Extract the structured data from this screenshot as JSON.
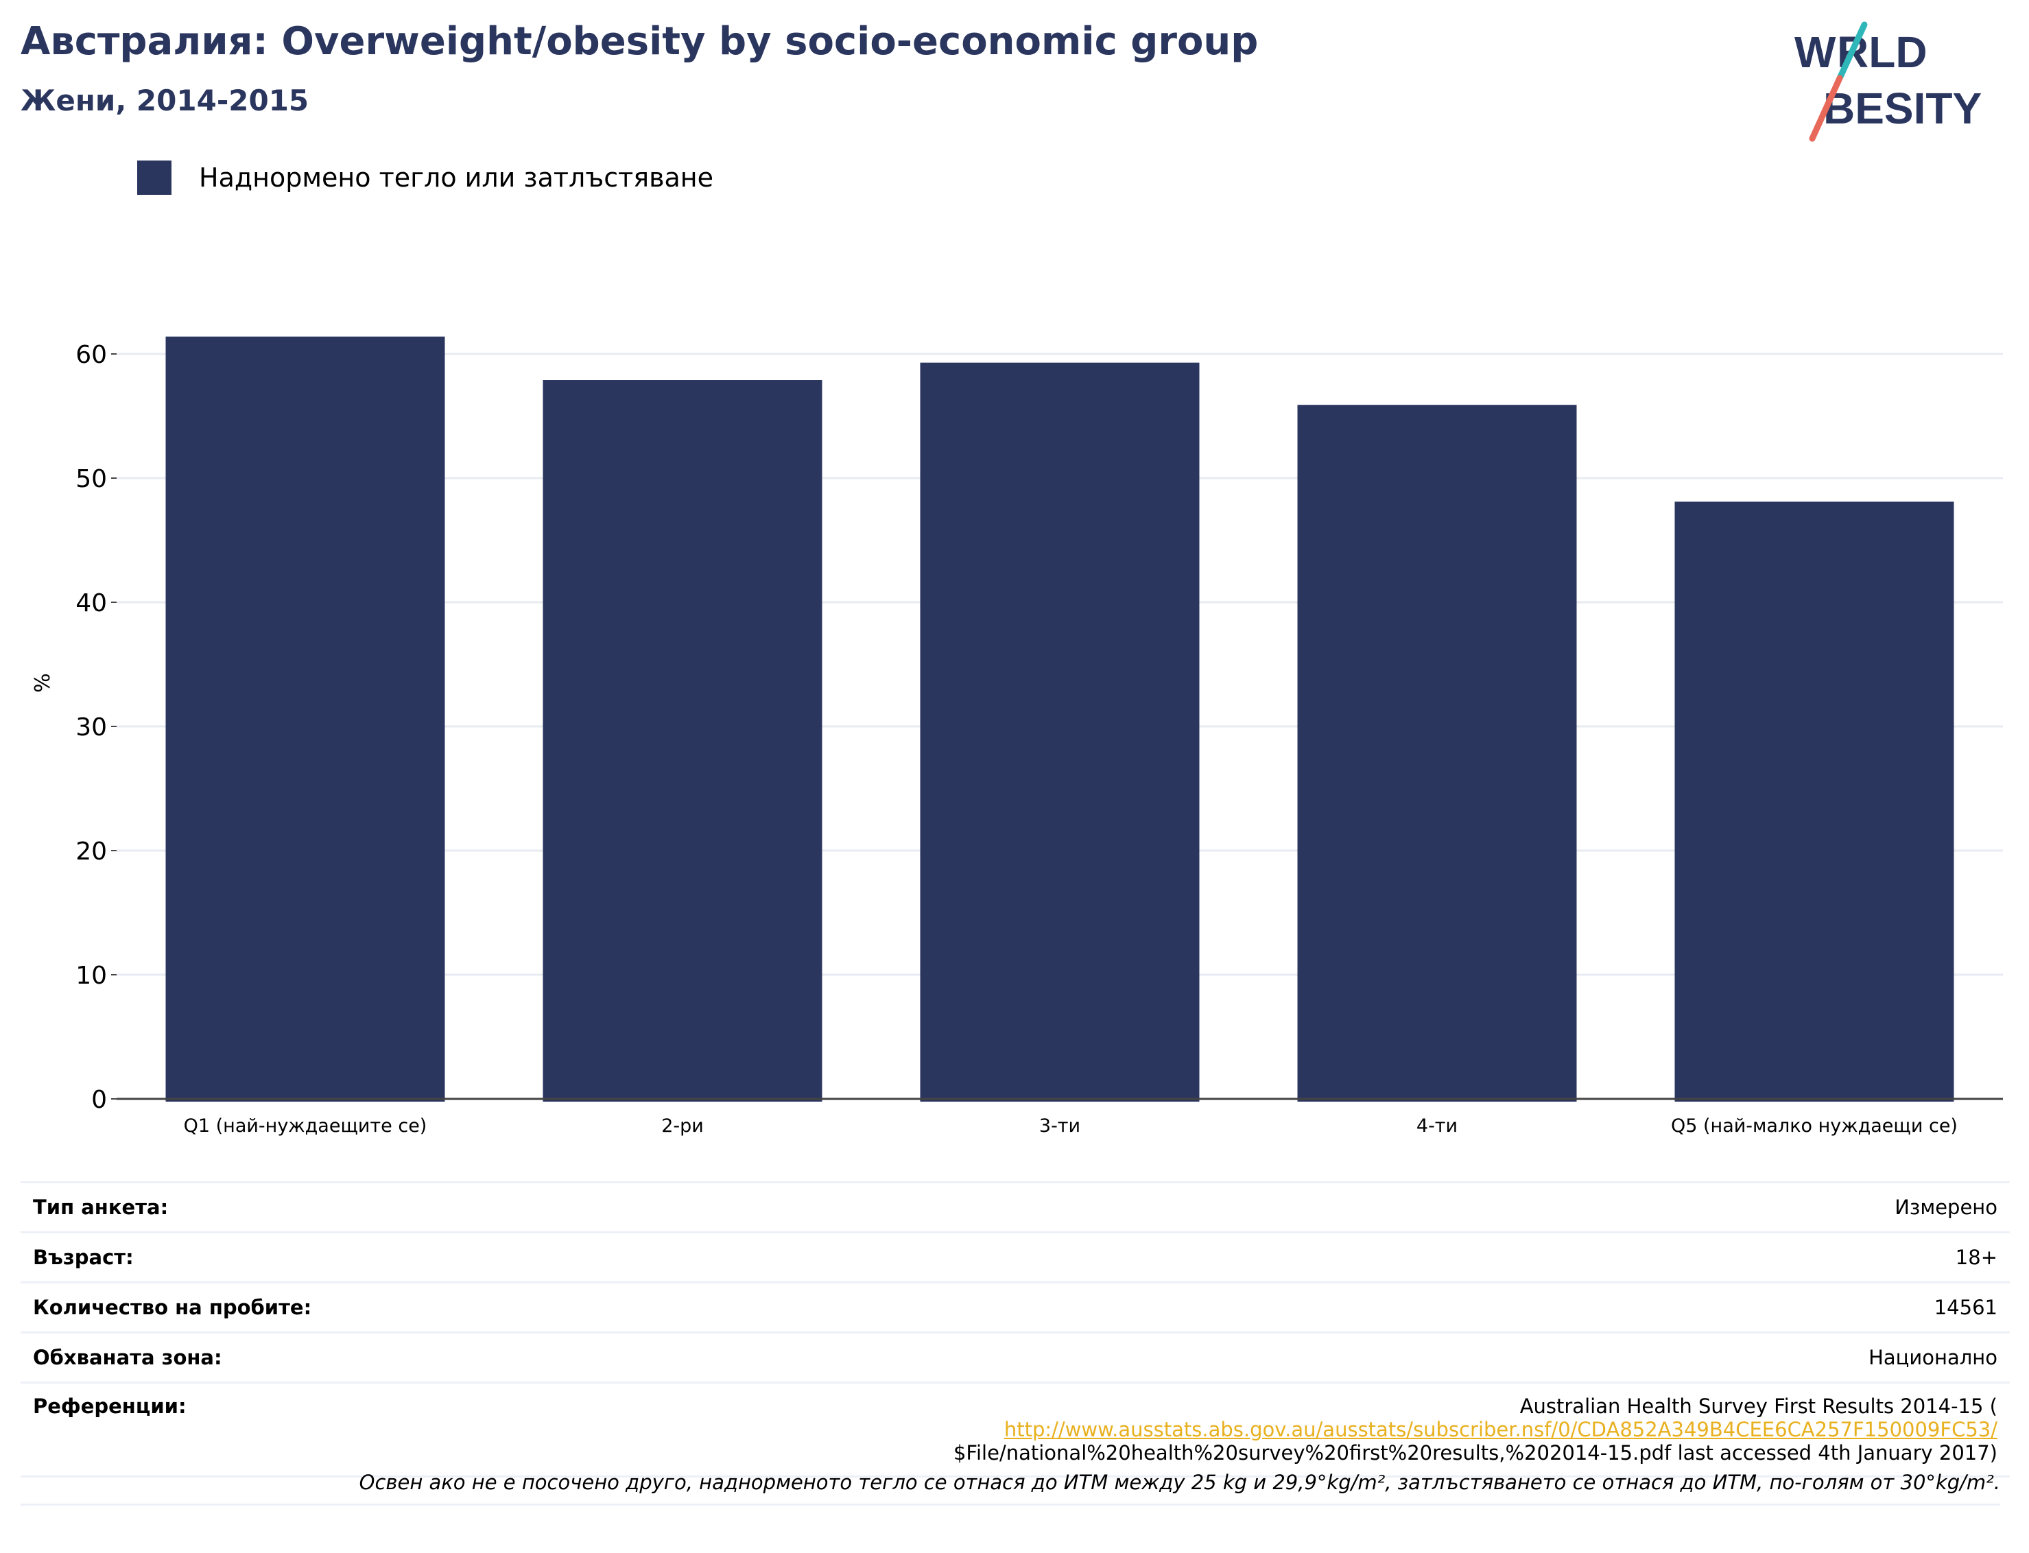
{
  "header": {
    "title": "Австралия: Overweight/obesity by socio-economic group",
    "subtitle": "Жени, 2014-2015"
  },
  "logo": {
    "line1": "WORLD",
    "line2": "OBESITY"
  },
  "colors": {
    "bar": "#2b365f",
    "title": "#2b365f",
    "grid": "#e8ebf2",
    "link": "#e8b01e",
    "logo_teal": "#2fb6b8",
    "logo_coral": "#e8685a"
  },
  "legend": {
    "label": "Наднормено тегло или затлъстяване"
  },
  "chart_data": {
    "type": "bar",
    "categories": [
      "Q1 (най-нуждаещите се)",
      "2-ри",
      "3-ти",
      "4-ти",
      "Q5 (най-малко нуждаещи се)"
    ],
    "series": [
      {
        "name": "Наднормено тегло или затлъстяване",
        "values": [
          61.4,
          57.9,
          59.3,
          55.9,
          48.1
        ]
      }
    ],
    "ylabel": "%",
    "ylim": [
      0,
      70
    ],
    "yticks": [
      0,
      10,
      20,
      30,
      40,
      50,
      60
    ],
    "grid": true,
    "legend_position": "top-left"
  },
  "info": {
    "survey_type_label": "Тип анкета:",
    "survey_type_value": "Измерено",
    "age_label": "Възраст:",
    "age_value": "18+",
    "sample_label": "Количество на пробите:",
    "sample_value": "14561",
    "area_label": "Обхваната зона:",
    "area_value": "Национално",
    "ref_label": "Референции:",
    "ref_line1": "Australian Health Survey First Results 2014-15 (",
    "ref_link": "http://www.ausstats.abs.gov.au/ausstats/subscriber.nsf/0/CDA852A349B4CEE6CA257F150009FC53/",
    "ref_line3": "$File/national%20health%20survey%20first%20results,%202014-15.pdf last accessed 4th January 2017)"
  },
  "note": "Освен ако не е посочено друго, наднорменото тегло се отнася до ИТМ между 25 kg и 29,9°kg/m², затлъстяването се отнася до ИТМ, по-голям от 30°kg/m²."
}
